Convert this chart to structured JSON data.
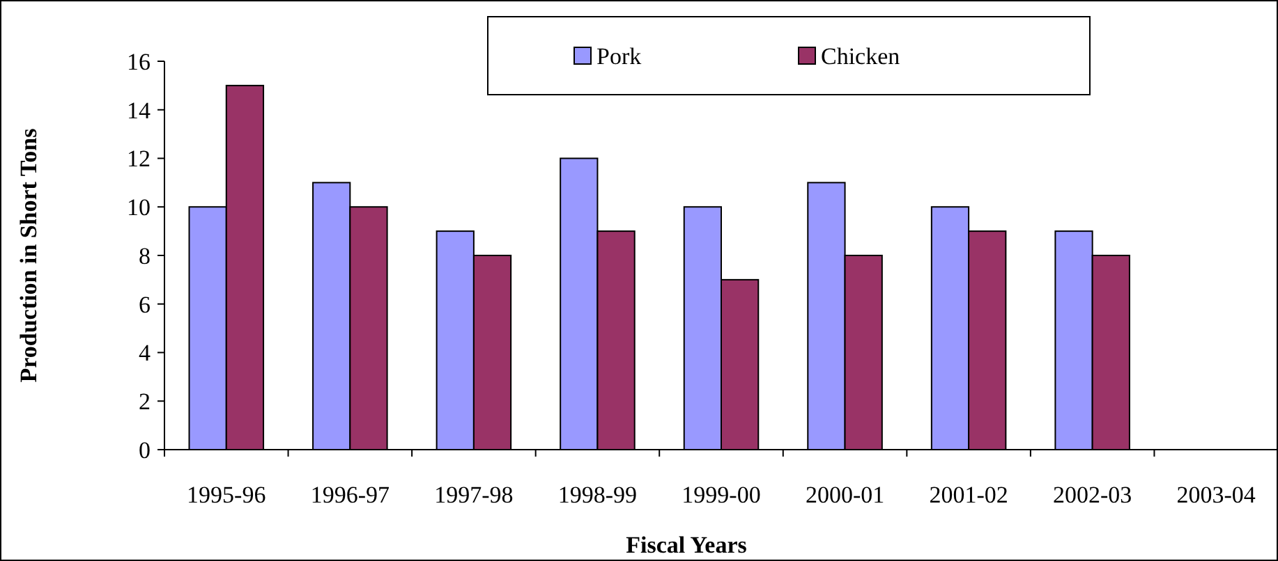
{
  "chart_data": {
    "type": "bar",
    "xlabel": "Fiscal Years",
    "ylabel": "Production in Short Tons",
    "categories": [
      "1995-96",
      "1996-97",
      "1997-98",
      "1998-99",
      "1999-00",
      "2000-01",
      "2001-02",
      "2002-03",
      "2003-04"
    ],
    "series": [
      {
        "name": "Pork",
        "color": "#9999ff",
        "values": [
          10,
          11,
          9,
          12,
          10,
          11,
          10,
          9,
          null
        ]
      },
      {
        "name": "Chicken",
        "color": "#993366",
        "values": [
          15,
          10,
          8,
          9,
          7,
          8,
          9,
          8,
          null
        ]
      }
    ],
    "ylim": [
      0,
      16
    ],
    "yticks": [
      0,
      2,
      4,
      6,
      8,
      10,
      12,
      14,
      16
    ],
    "grid": false,
    "legend": "top"
  }
}
